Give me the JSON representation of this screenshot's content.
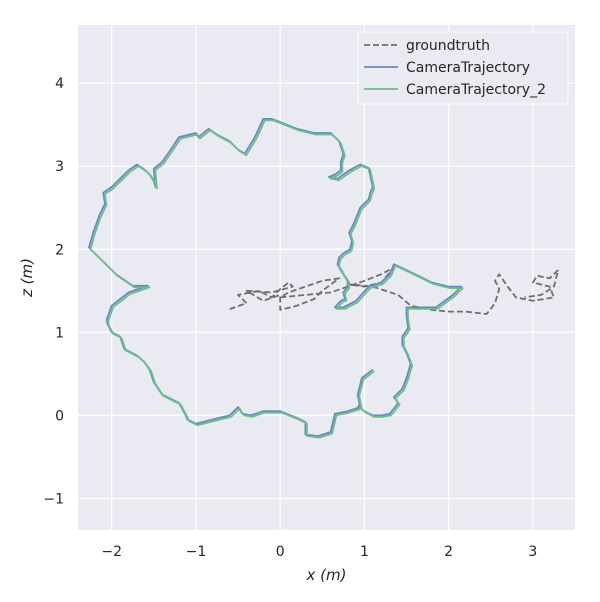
{
  "chart_data": {
    "type": "line",
    "title": "",
    "xlabel": "x (m)",
    "ylabel": "z (m)",
    "xlim": [
      -2.4,
      3.5
    ],
    "ylim": [
      -1.38,
      4.7
    ],
    "xticks": [
      -2,
      -1,
      0,
      1,
      2,
      3
    ],
    "yticks": [
      -1,
      0,
      1,
      2,
      3,
      4
    ],
    "xtick_labels": [
      "−2",
      "−1",
      "0",
      "1",
      "2",
      "3"
    ],
    "ytick_labels": [
      "−1",
      "0",
      "1",
      "2",
      "3",
      "4"
    ],
    "grid": true,
    "legend_position": "top-right",
    "colors": {
      "background": "#EAEAF2",
      "grid": "#FFFFFF",
      "groundtruth": "#6E6E6E",
      "CameraTrajectory": "#6A86C4",
      "CameraTrajectory_2": "#6CBF89"
    },
    "series": [
      {
        "name": "groundtruth",
        "style": "dashed",
        "x": [
          -0.6,
          -0.4,
          -0.5,
          -0.25,
          -0.1,
          0.0,
          0.1,
          0.15,
          -0.1,
          -0.4,
          -0.2,
          0.0,
          0.0,
          0.2,
          0.4,
          0.5,
          0.7,
          0.5,
          0.3,
          0.1,
          0.0,
          0.3,
          0.6,
          0.8,
          1.0,
          1.2,
          1.35,
          1.2,
          1.0,
          0.8,
          1.1,
          1.4,
          1.55,
          1.8,
          2.0,
          2.1,
          2.2,
          2.45,
          2.55,
          2.6,
          2.55,
          2.6,
          2.7,
          2.8,
          3.0,
          3.25,
          3.2,
          3.0,
          3.05,
          3.2,
          3.3,
          3.25,
          3.1,
          2.9
        ],
        "y": [
          1.28,
          1.35,
          1.45,
          1.5,
          1.42,
          1.52,
          1.6,
          1.55,
          1.48,
          1.5,
          1.38,
          1.45,
          1.27,
          1.32,
          1.4,
          1.5,
          1.65,
          1.62,
          1.55,
          1.48,
          1.42,
          1.45,
          1.48,
          1.55,
          1.62,
          1.7,
          1.78,
          1.6,
          1.55,
          1.58,
          1.55,
          1.45,
          1.32,
          1.27,
          1.25,
          1.25,
          1.25,
          1.22,
          1.35,
          1.52,
          1.62,
          1.7,
          1.55,
          1.42,
          1.38,
          1.42,
          1.55,
          1.6,
          1.68,
          1.65,
          1.75,
          1.55,
          1.45,
          1.42
        ]
      },
      {
        "name": "CameraTrajectory",
        "style": "solid",
        "x": [
          1.1,
          0.97,
          0.92,
          0.95,
          0.8,
          0.65,
          0.6,
          0.45,
          0.3,
          0.3,
          0.2,
          0.0,
          -0.2,
          -0.35,
          -0.45,
          -0.5,
          -0.6,
          -0.8,
          -1.0,
          -1.1,
          -1.12,
          -1.2,
          -1.4,
          -1.5,
          -1.55,
          -1.62,
          -1.7,
          -1.85,
          -1.9,
          -2.0,
          -2.05,
          -2.06,
          -2.0,
          -1.8,
          -1.57,
          -1.75,
          -1.95,
          -2.1,
          -2.2,
          -2.27,
          -2.22,
          -2.15,
          -2.08,
          -2.1,
          -2.0,
          -1.9,
          -1.8,
          -1.7,
          -1.6,
          -1.55,
          -1.5,
          -1.48,
          -1.5,
          -1.4,
          -1.3,
          -1.2,
          -1.0,
          -0.97,
          -0.85,
          -0.75,
          -0.6,
          -0.5,
          -0.42,
          -0.3,
          -0.2,
          -0.1,
          -0.05,
          0.2,
          0.4,
          0.6,
          0.7,
          0.75,
          0.72,
          0.72,
          0.65,
          0.58,
          0.68,
          0.82,
          0.95,
          1.05,
          1.1,
          1.07,
          1.05,
          0.95,
          0.87,
          0.82,
          0.85,
          0.83,
          0.75,
          0.7,
          0.68,
          0.72,
          0.75,
          0.8,
          0.8,
          0.75,
          0.77,
          0.72,
          0.65,
          0.75,
          0.9,
          1.05,
          1.2,
          1.3,
          1.35,
          1.6,
          1.8,
          2.0,
          2.15,
          2.05,
          1.85,
          1.65,
          1.5,
          1.5,
          1.52,
          1.45,
          1.45,
          1.5,
          1.55,
          1.5,
          1.45,
          1.35,
          1.4,
          1.35,
          1.3,
          1.2,
          1.1,
          1.0,
          0.92
        ],
        "y": [
          0.55,
          0.45,
          0.25,
          0.1,
          0.05,
          0.02,
          -0.2,
          -0.25,
          -0.23,
          -0.08,
          -0.03,
          0.05,
          0.05,
          0.0,
          0.02,
          0.1,
          0.0,
          -0.05,
          -0.1,
          -0.05,
          0.0,
          0.15,
          0.25,
          0.4,
          0.55,
          0.65,
          0.72,
          0.8,
          0.95,
          1.0,
          1.1,
          1.15,
          1.32,
          1.48,
          1.56,
          1.56,
          1.7,
          1.85,
          1.95,
          2.02,
          2.2,
          2.4,
          2.55,
          2.68,
          2.75,
          2.85,
          2.95,
          3.02,
          2.95,
          2.9,
          2.82,
          2.75,
          2.97,
          3.05,
          3.2,
          3.35,
          3.4,
          3.35,
          3.45,
          3.38,
          3.3,
          3.2,
          3.15,
          3.35,
          3.57,
          3.57,
          3.55,
          3.45,
          3.4,
          3.4,
          3.3,
          3.15,
          3.05,
          2.95,
          2.9,
          2.87,
          2.85,
          2.95,
          3.02,
          2.98,
          2.75,
          2.68,
          2.6,
          2.5,
          2.3,
          2.2,
          2.1,
          2.0,
          1.95,
          1.9,
          1.82,
          1.75,
          1.7,
          1.62,
          1.55,
          1.48,
          1.4,
          1.38,
          1.3,
          1.3,
          1.38,
          1.55,
          1.6,
          1.7,
          1.82,
          1.7,
          1.6,
          1.55,
          1.55,
          1.45,
          1.3,
          1.3,
          1.3,
          1.2,
          1.05,
          0.95,
          0.85,
          0.75,
          0.62,
          0.45,
          0.32,
          0.22,
          0.15,
          0.08,
          0.02,
          0.0,
          0.0,
          0.05,
          0.12
        ]
      },
      {
        "name": "CameraTrajectory_2",
        "style": "solid",
        "x": [
          1.1,
          0.97,
          0.92,
          0.95,
          0.8,
          0.65,
          0.6,
          0.45,
          0.3,
          0.3,
          0.2,
          0.0,
          -0.2,
          -0.35,
          -0.45,
          -0.5,
          -0.6,
          -0.8,
          -1.0,
          -1.1,
          -1.12,
          -1.2,
          -1.4,
          -1.5,
          -1.55,
          -1.62,
          -1.7,
          -1.85,
          -1.9,
          -2.0,
          -2.05,
          -2.06,
          -2.0,
          -1.8,
          -1.57,
          -1.75,
          -1.95,
          -2.1,
          -2.2,
          -2.27,
          -2.22,
          -2.15,
          -2.08,
          -2.1,
          -2.0,
          -1.9,
          -1.8,
          -1.7,
          -1.6,
          -1.55,
          -1.5,
          -1.48,
          -1.5,
          -1.4,
          -1.3,
          -1.2,
          -1.0,
          -0.97,
          -0.85,
          -0.75,
          -0.6,
          -0.5,
          -0.42,
          -0.3,
          -0.2,
          -0.1,
          -0.05,
          0.2,
          0.4,
          0.6,
          0.7,
          0.75,
          0.72,
          0.72,
          0.65,
          0.58,
          0.68,
          0.82,
          0.95,
          1.05,
          1.1,
          1.07,
          1.05,
          0.95,
          0.87,
          0.82,
          0.85,
          0.83,
          0.75,
          0.7,
          0.68,
          0.72,
          0.75,
          0.8,
          0.8,
          0.75,
          0.77,
          0.72,
          0.65,
          0.75,
          0.9,
          1.05,
          1.2,
          1.3,
          1.35,
          1.6,
          1.8,
          2.0,
          2.15,
          2.05,
          1.85,
          1.65,
          1.5,
          1.5,
          1.52,
          1.45,
          1.45,
          1.5,
          1.55,
          1.5,
          1.45,
          1.35,
          1.4,
          1.35,
          1.3,
          1.2,
          1.1,
          1.0,
          0.92
        ],
        "y": [
          0.55,
          0.45,
          0.25,
          0.1,
          0.05,
          0.02,
          -0.2,
          -0.25,
          -0.23,
          -0.08,
          -0.03,
          0.05,
          0.05,
          0.0,
          0.02,
          0.1,
          0.0,
          -0.05,
          -0.1,
          -0.05,
          0.0,
          0.15,
          0.25,
          0.4,
          0.55,
          0.65,
          0.72,
          0.8,
          0.95,
          1.0,
          1.1,
          1.15,
          1.32,
          1.48,
          1.56,
          1.56,
          1.7,
          1.85,
          1.95,
          2.02,
          2.2,
          2.4,
          2.55,
          2.68,
          2.75,
          2.85,
          2.95,
          3.02,
          2.95,
          2.9,
          2.82,
          2.75,
          2.97,
          3.05,
          3.2,
          3.35,
          3.4,
          3.35,
          3.45,
          3.38,
          3.3,
          3.2,
          3.15,
          3.35,
          3.57,
          3.57,
          3.55,
          3.45,
          3.4,
          3.4,
          3.3,
          3.15,
          3.05,
          2.95,
          2.9,
          2.87,
          2.85,
          2.95,
          3.02,
          2.98,
          2.75,
          2.68,
          2.6,
          2.5,
          2.3,
          2.2,
          2.1,
          2.0,
          1.95,
          1.9,
          1.82,
          1.75,
          1.7,
          1.62,
          1.55,
          1.48,
          1.4,
          1.38,
          1.3,
          1.3,
          1.38,
          1.55,
          1.6,
          1.7,
          1.82,
          1.7,
          1.6,
          1.55,
          1.55,
          1.45,
          1.3,
          1.3,
          1.3,
          1.2,
          1.05,
          0.95,
          0.85,
          0.75,
          0.62,
          0.45,
          0.32,
          0.22,
          0.15,
          0.08,
          0.02,
          0.0,
          0.0,
          0.05,
          0.12
        ]
      }
    ]
  }
}
